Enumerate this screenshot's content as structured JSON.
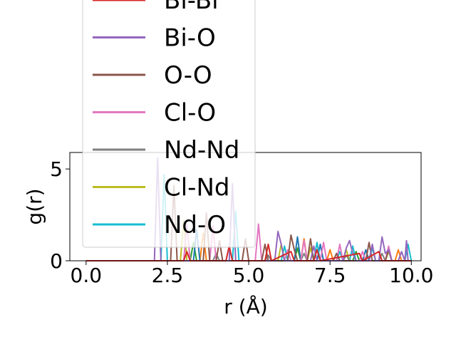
{
  "chart_data": {
    "type": "line",
    "title": "",
    "xlabel": "r (Å)",
    "ylabel": "g(r)",
    "xlim": [
      -0.5,
      10.3
    ],
    "ylim": [
      0,
      5.9
    ],
    "xticks": [
      0.0,
      2.5,
      5.0,
      7.5,
      10.0
    ],
    "xtick_labels": [
      "0.0",
      "2.5",
      "5.0",
      "7.5",
      "10.0"
    ],
    "yticks": [
      0,
      5
    ],
    "ytick_labels": [
      "0",
      "5"
    ],
    "grid": false,
    "legend_position": "upper-left, overflowing above the axes",
    "series": [
      {
        "name": "Bi-Bi",
        "color": "#d62728",
        "points": [
          [
            0,
            0
          ],
          [
            3.0,
            0
          ],
          [
            3.1,
            0.5
          ],
          [
            3.2,
            0
          ],
          [
            4.3,
            0
          ],
          [
            4.4,
            0.8
          ],
          [
            4.5,
            0
          ],
          [
            5.5,
            0
          ],
          [
            5.6,
            0.9
          ],
          [
            5.7,
            0
          ],
          [
            6.3,
            0.5
          ],
          [
            6.4,
            0
          ],
          [
            7.0,
            0
          ],
          [
            7.1,
            0.6
          ],
          [
            7.2,
            0
          ],
          [
            8.4,
            0.4
          ],
          [
            8.5,
            0
          ],
          [
            9.0,
            0.5
          ],
          [
            9.1,
            0
          ],
          [
            10.0,
            0
          ]
        ]
      },
      {
        "name": "Bi-O",
        "color": "#9467bd",
        "points": [
          [
            0,
            0
          ],
          [
            2.1,
            0
          ],
          [
            2.2,
            5.6
          ],
          [
            2.3,
            0
          ],
          [
            4.4,
            0
          ],
          [
            4.5,
            4.2
          ],
          [
            4.6,
            0
          ],
          [
            5.8,
            0
          ],
          [
            5.9,
            1.6
          ],
          [
            6.0,
            0.9
          ],
          [
            6.1,
            0
          ],
          [
            6.9,
            0
          ],
          [
            7.0,
            0.8
          ],
          [
            7.1,
            0
          ],
          [
            7.9,
            0
          ],
          [
            8.0,
            0.7
          ],
          [
            8.1,
            1.1
          ],
          [
            8.2,
            0.4
          ],
          [
            8.3,
            0
          ],
          [
            8.7,
            0
          ],
          [
            8.8,
            0.9
          ],
          [
            8.9,
            0
          ],
          [
            9.0,
            0
          ],
          [
            9.1,
            1.3
          ],
          [
            9.2,
            0.4
          ],
          [
            9.3,
            0.6
          ],
          [
            9.4,
            0
          ],
          [
            9.6,
            0
          ],
          [
            9.7,
            0.5
          ],
          [
            9.8,
            0
          ],
          [
            9.85,
            1.1
          ],
          [
            9.9,
            0
          ]
        ]
      },
      {
        "name": "O-O",
        "color": "#8c564b",
        "points": [
          [
            0,
            0
          ],
          [
            2.6,
            0
          ],
          [
            2.7,
            4.1
          ],
          [
            2.8,
            0
          ],
          [
            2.9,
            0
          ],
          [
            3.6,
            0
          ],
          [
            3.7,
            2.6
          ],
          [
            3.8,
            0
          ],
          [
            4.0,
            0
          ],
          [
            4.1,
            1.1
          ],
          [
            4.2,
            0
          ],
          [
            4.8,
            0
          ],
          [
            4.9,
            1.2
          ],
          [
            5.0,
            0
          ],
          [
            5.4,
            0
          ],
          [
            5.5,
            0.9
          ],
          [
            5.6,
            0
          ],
          [
            6.2,
            0
          ],
          [
            6.3,
            1.4
          ],
          [
            6.4,
            0.6
          ],
          [
            6.5,
            0
          ],
          [
            6.8,
            0
          ],
          [
            6.9,
            1.2
          ],
          [
            7.0,
            0
          ],
          [
            7.6,
            0
          ],
          [
            7.7,
            0.4
          ],
          [
            7.8,
            0
          ],
          [
            8.6,
            0
          ],
          [
            8.7,
            1.0
          ],
          [
            8.8,
            0
          ],
          [
            9.2,
            0
          ],
          [
            9.3,
            0.6
          ],
          [
            9.4,
            0
          ],
          [
            10.0,
            0
          ]
        ]
      },
      {
        "name": "Cl-O",
        "color": "#e377c2",
        "points": [
          [
            0,
            0
          ],
          [
            3.0,
            0
          ],
          [
            3.1,
            2.0
          ],
          [
            3.2,
            0
          ],
          [
            3.8,
            0
          ],
          [
            3.9,
            1.9
          ],
          [
            4.0,
            0
          ],
          [
            5.2,
            0
          ],
          [
            5.3,
            2.0
          ],
          [
            5.4,
            0
          ],
          [
            6.1,
            0
          ],
          [
            6.2,
            0.6
          ],
          [
            6.3,
            0
          ],
          [
            6.6,
            0
          ],
          [
            6.7,
            1.1
          ],
          [
            6.8,
            0
          ],
          [
            7.2,
            0
          ],
          [
            7.3,
            1.0
          ],
          [
            7.4,
            0
          ],
          [
            7.7,
            0
          ],
          [
            7.8,
            0.9
          ],
          [
            7.9,
            0
          ],
          [
            8.4,
            0
          ],
          [
            8.5,
            0.5
          ],
          [
            8.6,
            0
          ],
          [
            9.2,
            0
          ],
          [
            9.3,
            0.8
          ],
          [
            9.4,
            0
          ],
          [
            10.0,
            0
          ]
        ]
      },
      {
        "name": "Nd-Nd",
        "color": "#7f7f7f",
        "points": [
          [
            0,
            0
          ],
          [
            3.9,
            0
          ],
          [
            4.0,
            0.4
          ],
          [
            4.1,
            0
          ],
          [
            5.5,
            0
          ],
          [
            5.6,
            0.3
          ],
          [
            5.7,
            0
          ],
          [
            6.6,
            0
          ],
          [
            6.7,
            0.4
          ],
          [
            6.8,
            0
          ],
          [
            7.9,
            0
          ],
          [
            8.0,
            0.3
          ],
          [
            8.1,
            0
          ],
          [
            9.0,
            0
          ],
          [
            9.1,
            0.4
          ],
          [
            9.2,
            0
          ],
          [
            10.0,
            0
          ]
        ]
      },
      {
        "name": "Cl-Nd",
        "color": "#bcbd22",
        "points": [
          [
            0,
            0
          ],
          [
            2.9,
            0
          ],
          [
            3.0,
            2.2
          ],
          [
            3.1,
            0
          ],
          [
            5.9,
            0
          ],
          [
            6.0,
            0.9
          ],
          [
            6.1,
            0
          ],
          [
            6.8,
            0
          ],
          [
            6.9,
            0.7
          ],
          [
            7.0,
            0
          ],
          [
            7.9,
            0
          ],
          [
            8.0,
            0.6
          ],
          [
            8.1,
            0
          ],
          [
            9.2,
            0
          ],
          [
            9.3,
            0.5
          ],
          [
            9.4,
            0
          ],
          [
            10.0,
            0
          ]
        ]
      },
      {
        "name": "Nd-O",
        "color": "#17becf",
        "points": [
          [
            0,
            0
          ],
          [
            2.3,
            0
          ],
          [
            2.4,
            4.7
          ],
          [
            2.5,
            0
          ],
          [
            4.5,
            0
          ],
          [
            4.6,
            2.7
          ],
          [
            4.7,
            0
          ],
          [
            6.0,
            0
          ],
          [
            6.1,
            0.8
          ],
          [
            6.2,
            0
          ],
          [
            7.0,
            0
          ],
          [
            7.1,
            1.0
          ],
          [
            7.2,
            0
          ],
          [
            7.7,
            0
          ],
          [
            7.8,
            0.5
          ],
          [
            7.9,
            0
          ],
          [
            8.1,
            0
          ],
          [
            8.2,
            0.8
          ],
          [
            8.3,
            0
          ],
          [
            8.7,
            0
          ],
          [
            8.8,
            0.7
          ],
          [
            8.9,
            0
          ],
          [
            9.8,
            0
          ],
          [
            9.9,
            0.9
          ],
          [
            10.0,
            0
          ]
        ]
      },
      {
        "name": "",
        "color": "#1f77b4",
        "points": [
          [
            0,
            0
          ],
          [
            3.3,
            0
          ],
          [
            3.4,
            1.7
          ],
          [
            3.5,
            0
          ],
          [
            6.4,
            0
          ],
          [
            6.5,
            1.3
          ],
          [
            6.6,
            0
          ],
          [
            7.1,
            0
          ],
          [
            7.2,
            0.9
          ],
          [
            7.3,
            0
          ],
          [
            8.5,
            0
          ],
          [
            8.6,
            0.6
          ],
          [
            8.7,
            0
          ],
          [
            10.0,
            0
          ]
        ]
      },
      {
        "name": "",
        "color": "#ff7f0e",
        "points": [
          [
            0,
            0
          ],
          [
            3.5,
            0
          ],
          [
            3.6,
            1.5
          ],
          [
            3.7,
            0
          ],
          [
            6.6,
            0
          ],
          [
            6.7,
            1.2
          ],
          [
            6.8,
            0
          ],
          [
            7.4,
            0
          ],
          [
            7.5,
            0.6
          ],
          [
            7.6,
            0
          ],
          [
            9.5,
            0
          ],
          [
            9.6,
            0.6
          ],
          [
            9.7,
            0
          ],
          [
            10.0,
            0
          ]
        ]
      },
      {
        "name": "",
        "color": "#2ca02c",
        "points": [
          [
            0,
            0
          ],
          [
            3.2,
            0
          ],
          [
            3.3,
            1.0
          ],
          [
            3.4,
            0
          ],
          [
            6.4,
            0
          ],
          [
            6.5,
            0.7
          ],
          [
            6.6,
            0
          ],
          [
            8.2,
            0
          ],
          [
            8.3,
            0.5
          ],
          [
            8.4,
            0
          ],
          [
            10.0,
            0
          ]
        ]
      }
    ],
    "legend": [
      {
        "label": "Bi-Bi",
        "color": "#d62728"
      },
      {
        "label": "Bi-O",
        "color": "#9467bd"
      },
      {
        "label": "O-O",
        "color": "#8c564b"
      },
      {
        "label": "Cl-O",
        "color": "#e377c2"
      },
      {
        "label": "Nd-Nd",
        "color": "#7f7f7f"
      },
      {
        "label": "Cl-Nd",
        "color": "#bcbd22"
      },
      {
        "label": "Nd-O",
        "color": "#17becf"
      }
    ]
  }
}
